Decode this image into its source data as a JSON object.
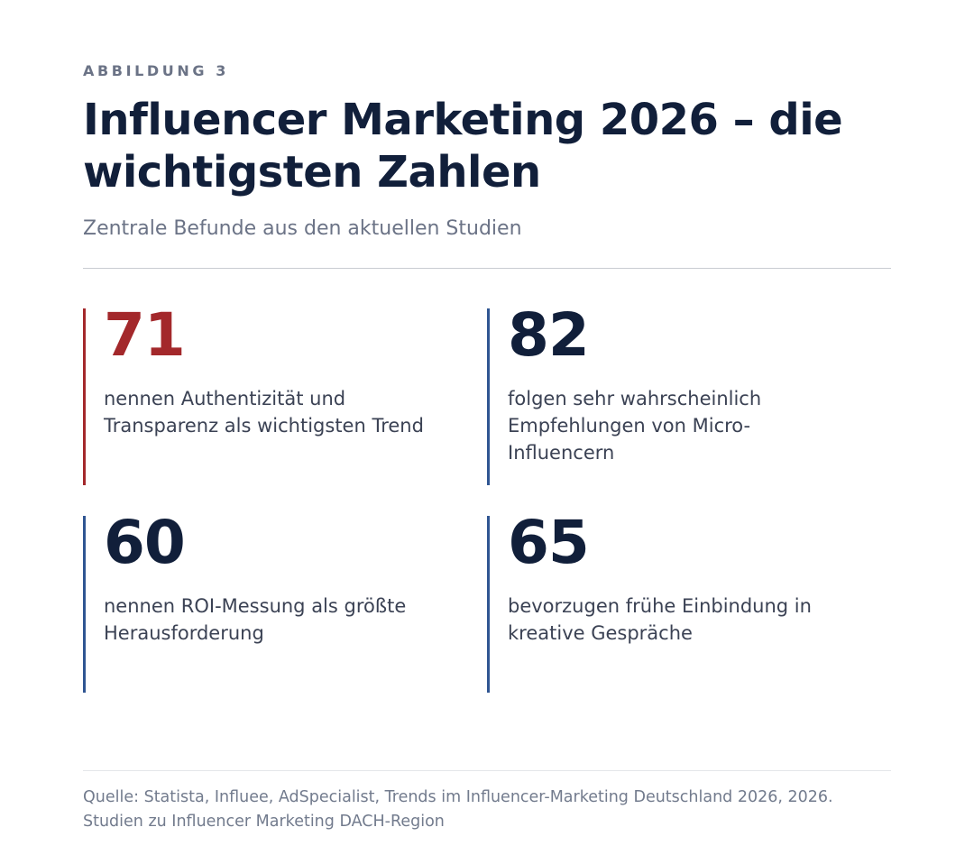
{
  "figure": {
    "eyebrow": "ABBILDUNG 3",
    "title": "Influencer Marketing 2026 – die wichtigsten Zahlen",
    "subtitle": "Zentrale Befunde aus den aktuellen Studien",
    "source": "Quelle: Statista, Influee, AdSpecialist, Trends im Influencer-Marketing Deutschland 2026, 2026. Studien zu Influencer Marketing DACH-Region"
  },
  "stats": [
    {
      "value": "71",
      "text": "nennen Authentizität und Transparenz als wichtigsten Trend",
      "accent": "#a3282b"
    },
    {
      "value": "82",
      "text": "folgen sehr wahrscheinlich Empfehlungen von Micro-Influencern",
      "accent": "#2f5592"
    },
    {
      "value": "60",
      "text": "nennen ROI-Messung als größte Herausforderung",
      "accent": "#2f5592"
    },
    {
      "value": "65",
      "text": "bevorzugen frühe Einbindung in kreative Gespräche",
      "accent": "#2f5592"
    }
  ],
  "colors": {
    "heading": "#111f3a",
    "highlight": "#a3282b",
    "bar": "#2f5592",
    "muted": "#6b7386"
  }
}
